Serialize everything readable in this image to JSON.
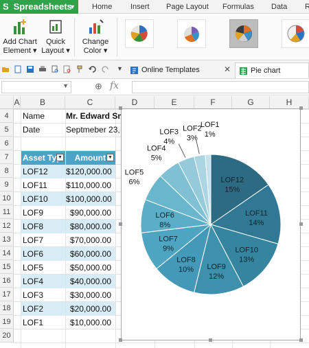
{
  "menubar": {
    "app_name": "Spreadsheets",
    "items": [
      "Home",
      "Insert",
      "Page Layout",
      "Formulas",
      "Data",
      "R"
    ]
  },
  "ribbon": {
    "add_chart_element": [
      "Add Chart",
      "Element ▾"
    ],
    "quick_layout": [
      "Quick",
      "Layout ▾"
    ],
    "change_color": [
      "Change",
      "Color ▾"
    ]
  },
  "tabs": {
    "online_templates": "Online Templates",
    "pie_chart_template": "Pie chart template"
  },
  "formula_bar": {
    "fx_label": "fx",
    "name_box_value": "",
    "formula_value": ""
  },
  "columns": [
    "A",
    "B",
    "C",
    "D",
    "E",
    "F",
    "G",
    "H"
  ],
  "rows": [
    "4",
    "5",
    "6",
    "7",
    "8",
    "9",
    "10",
    "11",
    "12",
    "13",
    "14",
    "15",
    "16",
    "17",
    "18",
    "19",
    "20"
  ],
  "info": {
    "name_label": "Name",
    "name_value": "Mr. Edward Sm",
    "date_label": "Date",
    "date_value": "Septmeber 23,"
  },
  "table": {
    "headers": [
      "Asset Typ",
      "Amount"
    ],
    "rows": [
      [
        "LOF12",
        "$120,000.00"
      ],
      [
        "LOF11",
        "$110,000.00"
      ],
      [
        "LOF10",
        "$100,000.00"
      ],
      [
        "LOF9",
        "$90,000.00"
      ],
      [
        "LOF8",
        "$80,000.00"
      ],
      [
        "LOF7",
        "$70,000.00"
      ],
      [
        "LOF6",
        "$60,000.00"
      ],
      [
        "LOF5",
        "$50,000.00"
      ],
      [
        "LOF4",
        "$40,000.00"
      ],
      [
        "LOF3",
        "$30,000.00"
      ],
      [
        "LOF2",
        "$20,000.00"
      ],
      [
        "LOF1",
        "$10,000.00"
      ]
    ]
  },
  "chart_data": {
    "type": "pie",
    "title": "",
    "categories": [
      "LOF12",
      "LOF11",
      "LOF10",
      "LOF9",
      "LOF8",
      "LOF7",
      "LOF6",
      "LOF5",
      "LOF4",
      "LOF3",
      "LOF2",
      "LOF1"
    ],
    "values": [
      120000,
      110000,
      100000,
      90000,
      80000,
      70000,
      60000,
      50000,
      40000,
      30000,
      20000,
      10000
    ],
    "percent_labels": [
      "15%",
      "14%",
      "13%",
      "12%",
      "10%",
      "9%",
      "8%",
      "6%",
      "5%",
      "4%",
      "3%",
      "1%"
    ],
    "colors": [
      "#2c6b82",
      "#307893",
      "#3685a0",
      "#3d91ad",
      "#4499b8",
      "#4ea5c2",
      "#5aaec8",
      "#6ab6cd",
      "#7fc0d4",
      "#95cadb",
      "#abd5e2",
      "#c5e2ec"
    ],
    "legend": "none",
    "data_labels": "category name and percent"
  },
  "colors": {
    "accent": "#2fa24a",
    "table_header": "#4ba3c7",
    "table_band": "#d8ecf6"
  }
}
